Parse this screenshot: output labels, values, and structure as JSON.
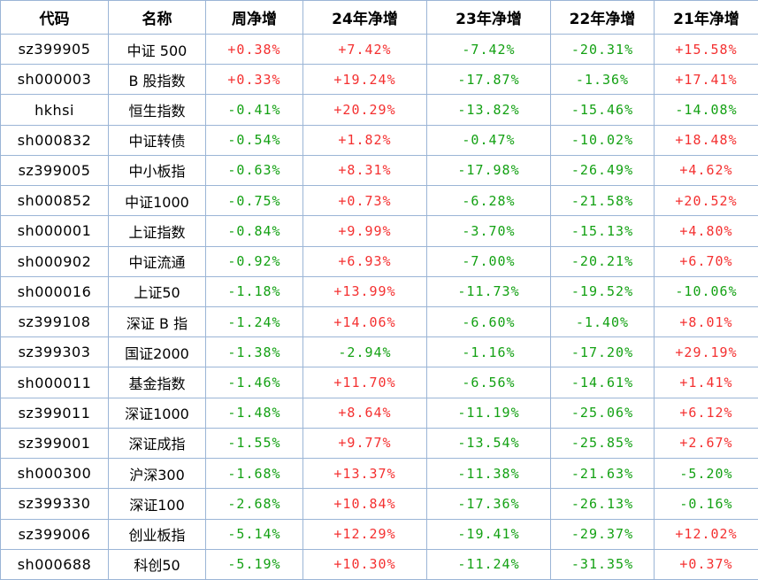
{
  "chart_data": {
    "type": "table",
    "columns": [
      "代码",
      "名称",
      "周净增",
      "24年净增",
      "23年净增",
      "22年净增",
      "21年净增"
    ],
    "rows": [
      {
        "code": "sz399905",
        "name": "中证 500",
        "values": [
          "+0.38%",
          "+7.42%",
          "-7.42%",
          "-20.31%",
          "+15.58%"
        ]
      },
      {
        "code": "sh000003",
        "name": "B 股指数",
        "values": [
          "+0.33%",
          "+19.24%",
          "-17.87%",
          "-1.36%",
          "+17.41%"
        ]
      },
      {
        "code": "hkhsi",
        "name": "恒生指数",
        "values": [
          "-0.41%",
          "+20.29%",
          "-13.82%",
          "-15.46%",
          "-14.08%"
        ]
      },
      {
        "code": "sh000832",
        "name": "中证转债",
        "values": [
          "-0.54%",
          "+1.82%",
          "-0.47%",
          "-10.02%",
          "+18.48%"
        ]
      },
      {
        "code": "sz399005",
        "name": "中小板指",
        "values": [
          "-0.63%",
          "+8.31%",
          "-17.98%",
          "-26.49%",
          "+4.62%"
        ]
      },
      {
        "code": "sh000852",
        "name": "中证1000",
        "values": [
          "-0.75%",
          "+0.73%",
          "-6.28%",
          "-21.58%",
          "+20.52%"
        ]
      },
      {
        "code": "sh000001",
        "name": "上证指数",
        "values": [
          "-0.84%",
          "+9.99%",
          "-3.70%",
          "-15.13%",
          "+4.80%"
        ]
      },
      {
        "code": "sh000902",
        "name": "中证流通",
        "values": [
          "-0.92%",
          "+6.93%",
          "-7.00%",
          "-20.21%",
          "+6.70%"
        ]
      },
      {
        "code": "sh000016",
        "name": "上证50",
        "values": [
          "-1.18%",
          "+13.99%",
          "-11.73%",
          "-19.52%",
          "-10.06%"
        ]
      },
      {
        "code": "sz399108",
        "name": "深证 B 指",
        "values": [
          "-1.24%",
          "+14.06%",
          "-6.60%",
          "-1.40%",
          "+8.01%"
        ]
      },
      {
        "code": "sz399303",
        "name": "国证2000",
        "values": [
          "-1.38%",
          "-2.94%",
          "-1.16%",
          "-17.20%",
          "+29.19%"
        ]
      },
      {
        "code": "sh000011",
        "name": "基金指数",
        "values": [
          "-1.46%",
          "+11.70%",
          "-6.56%",
          "-14.61%",
          "+1.41%"
        ]
      },
      {
        "code": "sz399011",
        "name": "深证1000",
        "values": [
          "-1.48%",
          "+8.64%",
          "-11.19%",
          "-25.06%",
          "+6.12%"
        ]
      },
      {
        "code": "sz399001",
        "name": "深证成指",
        "values": [
          "-1.55%",
          "+9.77%",
          "-13.54%",
          "-25.85%",
          "+2.67%"
        ]
      },
      {
        "code": "sh000300",
        "name": "沪深300",
        "values": [
          "-1.68%",
          "+13.37%",
          "-11.38%",
          "-21.63%",
          "-5.20%"
        ]
      },
      {
        "code": "sz399330",
        "name": "深证100",
        "values": [
          "-2.68%",
          "+10.84%",
          "-17.36%",
          "-26.13%",
          "-0.16%"
        ]
      },
      {
        "code": "sz399006",
        "name": "创业板指",
        "values": [
          "-5.14%",
          "+12.29%",
          "-19.41%",
          "-29.37%",
          "+12.02%"
        ]
      },
      {
        "code": "sh000688",
        "name": "科创50",
        "values": [
          "-5.19%",
          "+10.30%",
          "-11.24%",
          "-31.35%",
          "+0.37%"
        ]
      }
    ]
  },
  "colors": {
    "positive_text": "#f43030",
    "negative_text": "#13a113",
    "border": "#9bb5d6",
    "header_text": "#000000",
    "background": "#ffffff"
  }
}
